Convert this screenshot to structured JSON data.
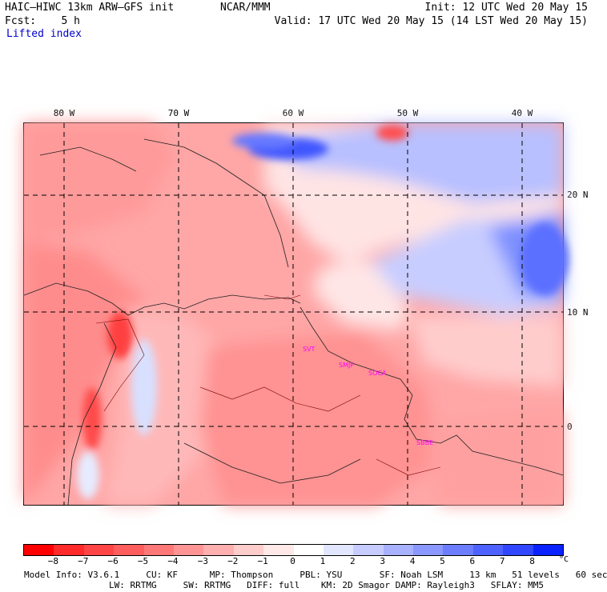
{
  "header": {
    "model": "HAIC–HIWC 13km ARW–GFS init",
    "org": "NCAR/MMM",
    "fcst": "Fcst:    5 h",
    "init": "Init: 12 UTC Wed 20 May 15",
    "valid": "Valid: 17 UTC Wed 20 May 15 (14 LST Wed 20 May 15)",
    "field": "Lifted index"
  },
  "map": {
    "lon_labels": [
      "80 W",
      "70 W",
      "60 W",
      "50 W",
      "40 W"
    ],
    "lat_labels": [
      "20 N",
      "10 N",
      "0"
    ],
    "stations": [
      "SVT",
      "SMJP",
      "SOCA",
      "SBBE"
    ],
    "cold_color": "#2a4bff",
    "warm_color": "#ff3030"
  },
  "colorbar": {
    "ticks": [
      "−8",
      "−7",
      "−6",
      "−5",
      "−4",
      "−3",
      "−2",
      "−1",
      "0",
      "1",
      "2",
      "3",
      "4",
      "5",
      "6",
      "7",
      "8"
    ],
    "unit": "°C",
    "colors": [
      "#ff0000",
      "#ff2a2a",
      "#ff4545",
      "#ff5e5e",
      "#ff7878",
      "#ff9494",
      "#ffafaf",
      "#ffcccc",
      "#ffe8e8",
      "#ffffff",
      "#e2e6ff",
      "#c6ccff",
      "#a8b2ff",
      "#8a98ff",
      "#6c7eff",
      "#4e62ff",
      "#3046ff",
      "#0a22ff"
    ]
  },
  "footer": {
    "line1": "Model Info: V3.6.1     CU: KF      MP: Thompson     PBL: YSU       SF: Noah LSM     13 km   51 levels   60 sec",
    "line2": "                LW: RRTMG     SW: RRTMG   DIFF: full    KM: 2D Smagor DAMP: Rayleigh3   SFLAY: MM5"
  }
}
